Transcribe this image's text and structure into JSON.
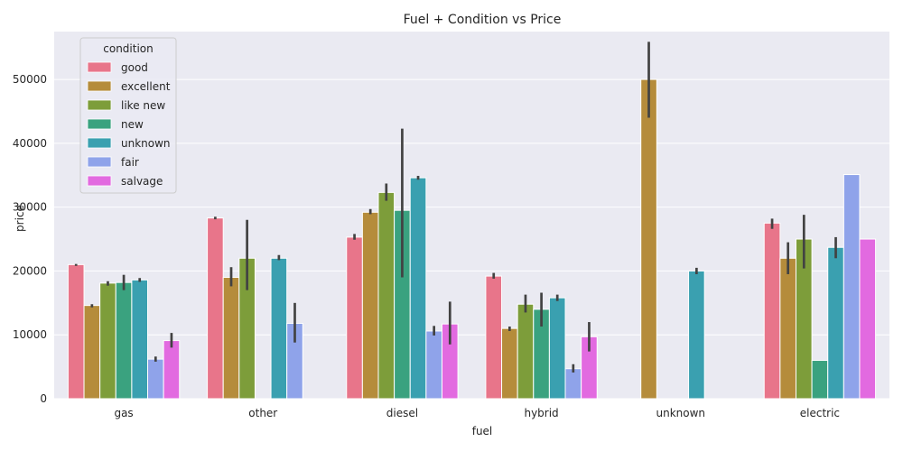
{
  "chart_data": {
    "type": "bar",
    "title": "Fuel + Condition vs Price",
    "xlabel": "fuel",
    "ylabel": "price",
    "ylim": [
      0,
      57500
    ],
    "yticks": [
      0,
      10000,
      20000,
      30000,
      40000,
      50000
    ],
    "grid": true,
    "legend": {
      "title": "condition",
      "placement": "top-left"
    },
    "categories": [
      "gas",
      "other",
      "diesel",
      "hybrid",
      "unknown",
      "electric"
    ],
    "series": [
      {
        "name": "good",
        "color": "#e8758a",
        "values": [
          21000,
          28300,
          25300,
          19200,
          null,
          27500
        ],
        "err": [
          [
            20800,
            21100
          ],
          [
            28100,
            28500
          ],
          [
            24900,
            25800
          ],
          [
            18800,
            19700
          ],
          null,
          [
            26600,
            28200
          ]
        ]
      },
      {
        "name": "excellent",
        "color": "#b58c3b",
        "values": [
          14600,
          19000,
          29200,
          11000,
          50000,
          22000
        ],
        "err": [
          [
            14300,
            14800
          ],
          [
            17600,
            20600
          ],
          [
            28900,
            29700
          ],
          [
            10600,
            11300
          ],
          [
            44000,
            55900
          ],
          [
            19500,
            24500
          ]
        ]
      },
      {
        "name": "like new",
        "color": "#7d9d3a",
        "values": [
          18100,
          22000,
          32300,
          14800,
          null,
          25000
        ],
        "err": [
          [
            17700,
            18400
          ],
          [
            17000,
            28000
          ],
          [
            31000,
            33700
          ],
          [
            13500,
            16300
          ],
          null,
          [
            20400,
            28800
          ]
        ]
      },
      {
        "name": "new",
        "color": "#3aa27f",
        "values": [
          18200,
          null,
          29500,
          14000,
          null,
          6000
        ],
        "err": [
          [
            17000,
            19400
          ],
          null,
          [
            19000,
            42300
          ],
          [
            11300,
            16600
          ],
          null,
          null
        ]
      },
      {
        "name": "unknown",
        "color": "#3aa0b0",
        "values": [
          18600,
          22000,
          34600,
          15800,
          20000,
          23700
        ],
        "err": [
          [
            18300,
            18900
          ],
          [
            21700,
            22500
          ],
          [
            34300,
            34900
          ],
          [
            15300,
            16300
          ],
          [
            19500,
            20500
          ],
          [
            22000,
            25300
          ]
        ]
      },
      {
        "name": "fair",
        "color": "#8fa3ea",
        "values": [
          6200,
          11800,
          10600,
          4700,
          null,
          35100
        ],
        "err": [
          [
            5800,
            6600
          ],
          [
            8800,
            15000
          ],
          [
            9900,
            11400
          ],
          [
            4100,
            5400
          ],
          null,
          null
        ]
      },
      {
        "name": "salvage",
        "color": "#e26ae0",
        "values": [
          9100,
          null,
          11700,
          9700,
          null,
          25000
        ],
        "err": [
          [
            8000,
            10300
          ],
          null,
          [
            8500,
            15200
          ],
          [
            7400,
            12000
          ],
          null,
          null
        ]
      }
    ]
  }
}
